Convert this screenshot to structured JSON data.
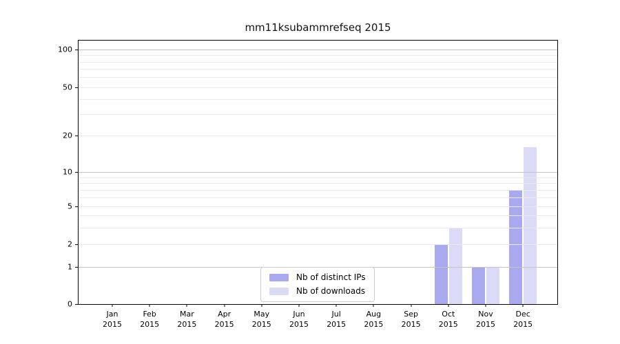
{
  "chart_data": {
    "type": "bar",
    "title": "mm11ksubammrefseq 2015",
    "x_tick_months": [
      "Jan",
      "Feb",
      "Mar",
      "Apr",
      "May",
      "Jun",
      "Jul",
      "Aug",
      "Sep",
      "Oct",
      "Nov",
      "Dec"
    ],
    "x_tick_year": "2015",
    "series": [
      {
        "name": "Nb of distinct IPs",
        "color": "#a9a9ef",
        "values": [
          0,
          0,
          0,
          0,
          0,
          0,
          0,
          0,
          0,
          2,
          1,
          7
        ]
      },
      {
        "name": "Nb of downloads",
        "color": "#dbdbf8",
        "values": [
          0,
          0,
          0,
          0,
          0,
          0,
          0,
          0,
          0,
          3,
          1,
          16
        ]
      }
    ],
    "y_ticks": [
      0,
      1,
      2,
      5,
      10,
      20,
      50,
      100
    ],
    "y_major_gridlines": [
      1,
      10,
      100
    ],
    "y_minor_gridlines": [
      2,
      3,
      4,
      5,
      6,
      7,
      8,
      9,
      20,
      30,
      40,
      50,
      60,
      70,
      80,
      90
    ],
    "ylim": [
      0,
      120
    ],
    "yscale": "log-like with linear segment below 1",
    "grid": true,
    "legend_position": "bottom-center",
    "xlabel": "",
    "ylabel": ""
  },
  "colors": {
    "background": "#ffffff",
    "axis": "#000000",
    "major_grid": "#c3c3c3",
    "minor_grid": "#ebebeb",
    "distinct_ips_bar": "#a9a9ef",
    "downloads_bar": "#dbdbf8",
    "legend_border": "#cccccc"
  }
}
